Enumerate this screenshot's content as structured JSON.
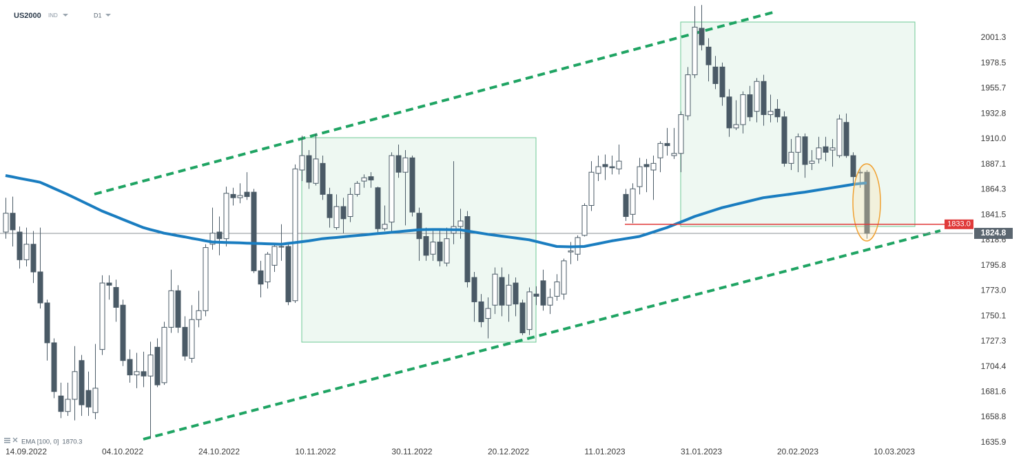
{
  "header": {
    "symbol": "US2000",
    "market": "IND",
    "interval": "D1"
  },
  "chart_data": {
    "type": "candlestick",
    "categories": [
      null,
      null,
      null,
      "14.09.2022",
      null,
      null,
      null,
      null,
      null,
      null,
      null,
      null,
      null,
      null,
      null,
      null,
      null,
      "04.10.2022",
      null,
      null,
      null,
      null,
      null,
      null,
      null,
      null,
      null,
      null,
      null,
      null,
      null,
      "24.10.2022",
      null,
      null,
      null,
      null,
      null,
      null,
      null,
      null,
      null,
      null,
      null,
      null,
      null,
      "10.11.2022",
      null,
      null,
      null,
      null,
      null,
      null,
      null,
      null,
      null,
      null,
      null,
      null,
      null,
      "30.11.2022",
      null,
      null,
      null,
      null,
      null,
      null,
      null,
      null,
      null,
      null,
      null,
      null,
      null,
      "20.12.2022",
      null,
      null,
      null,
      null,
      null,
      null,
      null,
      null,
      null,
      null,
      null,
      null,
      null,
      "11.01.2023",
      null,
      null,
      null,
      null,
      null,
      null,
      null,
      null,
      null,
      null,
      null,
      null,
      null,
      "31.01.2023",
      null,
      null,
      null,
      null,
      null,
      null,
      null,
      null,
      null,
      null,
      null,
      null,
      null,
      "20.02.2023",
      null,
      null,
      null,
      null,
      null,
      null,
      null,
      null,
      null,
      null,
      null,
      null,
      null,
      "10.03.2023"
    ],
    "open": [
      1826,
      1843,
      1826,
      1801,
      1815,
      1790,
      1762,
      1726,
      1678,
      1664,
      1675,
      1710,
      1683,
      1663,
      1720,
      1780,
      1776,
      1760,
      1711,
      1697,
      1700,
      1696,
      1722,
      1690,
      1740,
      1773,
      1740,
      1712,
      1747,
      1755,
      1815,
      1826,
      1820,
      1860,
      1857,
      1862,
      1862,
      1791,
      1781,
      1796,
      1813,
      1813,
      1764,
      1882,
      1895,
      1870,
      1888,
      1860,
      1830,
      1849,
      1840,
      1860,
      1872,
      1876,
      1866,
      1829,
      1835,
      1895,
      1880,
      1893,
      1843,
      1822,
      1806,
      1817,
      1798,
      1825,
      1831,
      1840,
      1785,
      1763,
      1748,
      1760,
      1785,
      1760,
      1780,
      1762,
      1738,
      1770,
      1782,
      1760,
      1768,
      1770,
      1808,
      1806,
      1823,
      1850,
      1879,
      1887,
      1885,
      1883,
      1860,
      1842,
      1867,
      1887,
      1882,
      1893,
      1906,
      1895,
      1897,
      1931,
      1968,
      2010,
      1993,
      1975,
      1975,
      1948,
      1920,
      1923,
      1950,
      1935,
      1962,
      1932,
      1937,
      1930,
      1888,
      1898,
      1912,
      1888,
      1892,
      1903,
      1900,
      1895,
      1925,
      1895,
      1880,
      1880,
      null,
      null,
      null,
      null
    ],
    "high": [
      1857,
      1858,
      1831,
      1830,
      1827,
      1830,
      1765,
      1730,
      1690,
      1690,
      1723,
      1715,
      1700,
      1725,
      1787,
      1787,
      1783,
      1765,
      1720,
      1717,
      1718,
      1727,
      1730,
      1745,
      1792,
      1778,
      1750,
      1760,
      1773,
      1815,
      1848,
      1840,
      1867,
      1866,
      1870,
      1880,
      1865,
      1800,
      1808,
      1815,
      1833,
      1817,
      1887,
      1913,
      1900,
      1915,
      1895,
      1866,
      1860,
      1857,
      1866,
      1872,
      1878,
      1880,
      1867,
      1850,
      1898,
      1905,
      1900,
      1895,
      1848,
      1830,
      1827,
      1828,
      1830,
      1890,
      1847,
      1845,
      1790,
      1770,
      1767,
      1794,
      1794,
      1788,
      1785,
      1765,
      1776,
      1777,
      1792,
      1775,
      1788,
      1802,
      1817,
      1823,
      1852,
      1890,
      1895,
      1896,
      1895,
      1905,
      1865,
      1870,
      1893,
      1892,
      1895,
      1908,
      1920,
      1920,
      1935,
      1975,
      2030,
      2031,
      2001,
      1985,
      1979,
      1955,
      1945,
      1953,
      1958,
      1965,
      1968,
      1950,
      1946,
      1935,
      1910,
      1915,
      1915,
      1900,
      1912,
      1912,
      1910,
      1932,
      1933,
      1898,
      1883,
      1882,
      null,
      null,
      null,
      null
    ],
    "low": [
      1820,
      1813,
      1793,
      1795,
      1780,
      1757,
      1710,
      1676,
      1658,
      1660,
      1656,
      1660,
      1660,
      1657,
      1715,
      1765,
      1745,
      1705,
      1690,
      1685,
      1686,
      1640,
      1686,
      1688,
      1735,
      1735,
      1710,
      1708,
      1740,
      1750,
      1810,
      1805,
      1813,
      1850,
      1852,
      1855,
      1789,
      1767,
      1775,
      1790,
      1800,
      1760,
      1762,
      1872,
      1865,
      1868,
      1855,
      1830,
      1828,
      1825,
      1835,
      1858,
      1866,
      1866,
      1826,
      1827,
      1825,
      1875,
      1832,
      1840,
      1800,
      1800,
      1800,
      1795,
      1795,
      1815,
      1820,
      1776,
      1745,
      1740,
      1730,
      1752,
      1750,
      1745,
      1750,
      1733,
      1733,
      1760,
      1755,
      1752,
      1764,
      1765,
      1797,
      1800,
      1822,
      1845,
      1872,
      1873,
      1878,
      1878,
      1836,
      1834,
      1860,
      1862,
      1855,
      1880,
      1895,
      1892,
      1880,
      1927,
      1965,
      1990,
      1962,
      1955,
      1940,
      1912,
      1918,
      1915,
      1926,
      1925,
      1922,
      1925,
      1925,
      1885,
      1882,
      1880,
      1875,
      1882,
      1888,
      1890,
      1885,
      1893,
      1893,
      1870,
      1866,
      1820,
      null,
      null,
      null,
      null
    ],
    "close": [
      1843,
      1828,
      1801,
      1815,
      1790,
      1762,
      1726,
      1682,
      1664,
      1675,
      1700,
      1670,
      1668,
      1685,
      1780,
      1778,
      1758,
      1710,
      1697,
      1700,
      1696,
      1715,
      1688,
      1740,
      1773,
      1740,
      1714,
      1747,
      1755,
      1812,
      1825,
      1820,
      1861,
      1857,
      1859,
      1858,
      1791,
      1779,
      1806,
      1813,
      1813,
      1763,
      1883,
      1895,
      1871,
      1892,
      1860,
      1839,
      1849,
      1838,
      1860,
      1870,
      1875,
      1873,
      1829,
      1833,
      1895,
      1880,
      1893,
      1844,
      1820,
      1805,
      1817,
      1800,
      1820,
      1831,
      1836,
      1781,
      1763,
      1745,
      1757,
      1788,
      1760,
      1778,
      1761,
      1735,
      1772,
      1768,
      1760,
      1767,
      1781,
      1800,
      1809,
      1821,
      1850,
      1880,
      1885,
      1885,
      1884,
      1890,
      1840,
      1865,
      1885,
      1885,
      1888,
      1906,
      1904,
      1897,
      1932,
      1968,
      2011,
      1995,
      1977,
      1960,
      1948,
      1920,
      1923,
      1950,
      1930,
      1962,
      1932,
      1935,
      1930,
      1888,
      1898,
      1912,
      1887,
      1890,
      1902,
      1898,
      1902,
      1928,
      1895,
      1876,
      1880,
      1824.8,
      null,
      null,
      null,
      null
    ],
    "up_color": "#ffffff",
    "down_color": "#4a5a66",
    "series": [
      {
        "name": "EMA [100, 0]",
        "color": "#1a7dc0",
        "values": [
          1877,
          1875.8,
          1874.6,
          1873.4,
          1872.2,
          1871,
          1868.3,
          1865.5,
          1862.8,
          1860,
          1857,
          1854,
          1851,
          1848,
          1845,
          1842.5,
          1840,
          1837.5,
          1835,
          1832.5,
          1830,
          1828.3,
          1826.7,
          1825,
          1823.9,
          1822.7,
          1821.6,
          1820.4,
          1819.3,
          1818.1,
          1817,
          1816.8,
          1816.6,
          1816.4,
          1816.2,
          1816,
          1815.8,
          1815.6,
          1815.4,
          1815.2,
          1815,
          1815.8,
          1816.5,
          1817.3,
          1818,
          1819,
          1820,
          1820.6,
          1821.1,
          1821.7,
          1822.3,
          1822.9,
          1823.4,
          1824,
          1824.6,
          1825.1,
          1825.7,
          1826.3,
          1826.9,
          1827.4,
          1828,
          1828.2,
          1828.3,
          1828.3,
          1828.2,
          1828.1,
          1828,
          1827,
          1826,
          1825,
          1824,
          1823.2,
          1822.3,
          1821.5,
          1820.7,
          1819.8,
          1819,
          1817.5,
          1816,
          1814.5,
          1813,
          1812.8,
          1812.7,
          1812.8,
          1813,
          1814.3,
          1815.5,
          1816.8,
          1818,
          1819,
          1820,
          1821,
          1822,
          1824,
          1826,
          1828,
          1830,
          1832.5,
          1835,
          1837.5,
          1840,
          1842,
          1844,
          1846,
          1848,
          1849.5,
          1851,
          1852.5,
          1854,
          1855.5,
          1857,
          1857.8,
          1858.7,
          1859.5,
          1860.3,
          1861.2,
          1862,
          1863,
          1864,
          1865,
          1866,
          1867,
          1868,
          1869,
          1869.8,
          1870.3,
          null,
          null,
          null,
          null
        ]
      }
    ],
    "ylim": [
      1631.5,
      2035.5
    ],
    "yticks": [
      1635.9,
      1658.8,
      1681.6,
      1704.4,
      1727.3,
      1750.1,
      {
        "value": 1773.0,
        "label": "1773.0"
      },
      1795.8,
      1818.6,
      1841.5,
      1864.3,
      1887.1,
      {
        "value": 1910.0,
        "label": "1910.0"
      },
      1932.8,
      1955.7,
      1978.5,
      2001.3
    ],
    "grid": false,
    "hline": {
      "value": 1833.0,
      "label": "1833.0",
      "color": "#e03a3a"
    }
  }
}
